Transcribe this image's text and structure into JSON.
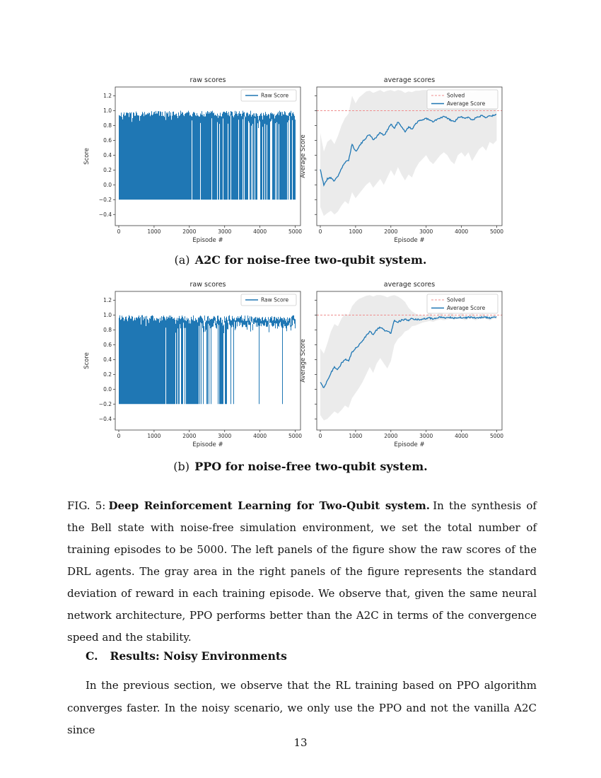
{
  "page": {
    "number": "13"
  },
  "figure": {
    "subfigures": [
      {
        "label": "(a)",
        "caption": "A2C for noise-free two-qubit system."
      },
      {
        "label": "(b)",
        "caption": "PPO for noise-free two-qubit system."
      }
    ],
    "caption": {
      "prefix": "FIG. 5:",
      "bold": "Deep Reinforcement Learning for Two-Qubit system.",
      "text": "In the synthesis of the Bell state with noise-free simulation environment, we set the total number of training episodes to be 5000. The left panels of the figure show the raw scores of the DRL agents. The gray area in the right panels of the figure represents the standard deviation of reward in each training episode. We observe that, given the same neural network architecture, PPO performs better than the A2C in terms of the convergence speed and the stability."
    }
  },
  "section": {
    "number": "C.",
    "title": "Results: Noisy Environments"
  },
  "body_text": {
    "paragraph": "In the previous section, we observe that the RL training based on PPO algorithm converges faster. In the noisy scenario, we only use the PPO and not the vanilla A2C since"
  },
  "colors": {
    "blue": "#1f77b4",
    "solved": "#ef8f8f",
    "band": "#ebebeb",
    "axis": "#3b3b3b"
  },
  "chart_data": [
    {
      "id": "a2c-raw",
      "type": "spikes",
      "title": "raw scores",
      "xlabel": "Episode #",
      "ylabel": "Score",
      "xlim": [
        -100,
        5150
      ],
      "ylim": [
        -0.55,
        1.32
      ],
      "xticks": [
        0,
        1000,
        2000,
        3000,
        4000,
        5000
      ],
      "yticks": [
        1.2,
        1.0,
        0.8,
        0.6,
        0.4,
        0.2,
        0.0,
        -0.2,
        -0.4
      ],
      "ytick_labels": true,
      "legend": [
        {
          "label": "Raw Score",
          "style": "solid"
        }
      ],
      "spike_low": -0.2,
      "spike_high_range": [
        0.92,
        1.0
      ],
      "density_profile": [
        [
          0,
          1850,
          1.0
        ],
        [
          1850,
          2600,
          0.95
        ],
        [
          2600,
          3300,
          0.82
        ],
        [
          3300,
          4300,
          0.68
        ],
        [
          4300,
          5000,
          0.6
        ]
      ],
      "seed": 7
    },
    {
      "id": "a2c-avg",
      "type": "line",
      "title": "average scores",
      "xlabel": "Episode #",
      "ylabel": "Average Score",
      "xlim": [
        -100,
        5150
      ],
      "ylim": [
        -0.55,
        1.32
      ],
      "xticks": [
        0,
        1000,
        2000,
        3000,
        4000,
        5000
      ],
      "yticks": [
        1.2,
        1.0,
        0.8,
        0.6,
        0.4,
        0.2,
        0.0,
        -0.2,
        -0.4
      ],
      "ytick_labels": false,
      "legend": [
        {
          "label": "Solved",
          "style": "dashed"
        },
        {
          "label": "Average Score",
          "style": "solid"
        }
      ],
      "solved_y": 1.0,
      "x": [
        0,
        100,
        200,
        300,
        400,
        500,
        600,
        700,
        800,
        900,
        1000,
        1100,
        1200,
        1300,
        1400,
        1500,
        1600,
        1700,
        1800,
        1900,
        2000,
        2100,
        2200,
        2300,
        2400,
        2500,
        2600,
        2700,
        2800,
        2900,
        3000,
        3100,
        3200,
        3300,
        3400,
        3500,
        3600,
        3700,
        3800,
        3900,
        4000,
        4100,
        4200,
        4300,
        4400,
        4500,
        4600,
        4700,
        4800,
        4900,
        5000
      ],
      "avg": [
        0.2,
        0.0,
        0.08,
        0.1,
        0.05,
        0.12,
        0.22,
        0.3,
        0.33,
        0.55,
        0.45,
        0.52,
        0.58,
        0.64,
        0.68,
        0.61,
        0.65,
        0.71,
        0.66,
        0.74,
        0.82,
        0.76,
        0.85,
        0.78,
        0.72,
        0.78,
        0.75,
        0.83,
        0.86,
        0.88,
        0.9,
        0.87,
        0.85,
        0.88,
        0.9,
        0.92,
        0.9,
        0.87,
        0.85,
        0.9,
        0.92,
        0.89,
        0.92,
        0.87,
        0.9,
        0.92,
        0.94,
        0.91,
        0.94,
        0.93,
        0.95
      ],
      "band_lower": [
        -0.3,
        -0.42,
        -0.38,
        -0.35,
        -0.4,
        -0.36,
        -0.28,
        -0.22,
        -0.26,
        -0.1,
        -0.18,
        -0.12,
        -0.06,
        0.0,
        0.04,
        -0.04,
        0.02,
        0.08,
        0.0,
        0.1,
        0.2,
        0.12,
        0.24,
        0.14,
        0.06,
        0.14,
        0.1,
        0.22,
        0.3,
        0.35,
        0.4,
        0.32,
        0.28,
        0.34,
        0.4,
        0.44,
        0.4,
        0.32,
        0.28,
        0.4,
        0.44,
        0.38,
        0.44,
        0.32,
        0.4,
        0.48,
        0.52,
        0.46,
        0.58,
        0.55,
        0.6
      ],
      "band_upper": [
        0.7,
        0.45,
        0.58,
        0.62,
        0.55,
        0.66,
        0.8,
        0.9,
        0.96,
        1.2,
        1.1,
        1.18,
        1.22,
        1.26,
        1.27,
        1.24,
        1.26,
        1.28,
        1.25,
        1.27,
        1.28,
        1.26,
        1.28,
        1.27,
        1.24,
        1.26,
        1.25,
        1.27,
        1.27,
        1.28,
        1.28,
        1.27,
        1.26,
        1.27,
        1.28,
        1.28,
        1.27,
        1.25,
        1.24,
        1.27,
        1.28,
        1.26,
        1.27,
        1.24,
        1.26,
        1.28,
        1.28,
        1.27,
        1.28,
        1.27,
        1.28
      ],
      "seed": 21
    },
    {
      "id": "ppo-raw",
      "type": "spikes",
      "title": "raw scores",
      "xlabel": "Episode #",
      "ylabel": "Score",
      "xlim": [
        -100,
        5150
      ],
      "ylim": [
        -0.55,
        1.32
      ],
      "xticks": [
        0,
        1000,
        2000,
        3000,
        4000,
        5000
      ],
      "yticks": [
        1.2,
        1.0,
        0.8,
        0.6,
        0.4,
        0.2,
        0.0,
        -0.2,
        -0.4
      ],
      "ytick_labels": true,
      "legend": [
        {
          "label": "Raw Score",
          "style": "solid"
        }
      ],
      "spike_low": -0.2,
      "spike_high_range": [
        0.92,
        1.0
      ],
      "density_profile": [
        [
          0,
          1050,
          1.0
        ],
        [
          1050,
          1700,
          0.92
        ],
        [
          1700,
          2100,
          0.75
        ],
        [
          2100,
          2450,
          0.55
        ],
        [
          2450,
          3300,
          0.3
        ],
        [
          3300,
          5000,
          0.05
        ]
      ],
      "seed": 99
    },
    {
      "id": "ppo-avg",
      "type": "line",
      "title": "average scores",
      "xlabel": "Episode #",
      "ylabel": "Average Score",
      "xlim": [
        -100,
        5150
      ],
      "ylim": [
        -0.55,
        1.32
      ],
      "xticks": [
        0,
        1000,
        2000,
        3000,
        4000,
        5000
      ],
      "yticks": [
        1.2,
        1.0,
        0.8,
        0.6,
        0.4,
        0.2,
        0.0,
        -0.2,
        -0.4
      ],
      "ytick_labels": false,
      "legend": [
        {
          "label": "Solved",
          "style": "dashed"
        },
        {
          "label": "Average Score",
          "style": "solid"
        }
      ],
      "solved_y": 1.0,
      "x": [
        0,
        100,
        200,
        300,
        400,
        500,
        600,
        700,
        800,
        900,
        1000,
        1100,
        1200,
        1300,
        1400,
        1500,
        1600,
        1700,
        1800,
        1900,
        2000,
        2100,
        2200,
        2300,
        2400,
        2500,
        2600,
        2700,
        2800,
        2900,
        3000,
        3100,
        3200,
        3300,
        3400,
        3500,
        3600,
        3700,
        3800,
        3900,
        4000,
        4100,
        4200,
        4300,
        4400,
        4500,
        4600,
        4700,
        4800,
        4900,
        5000
      ],
      "avg": [
        0.1,
        0.02,
        0.12,
        0.22,
        0.3,
        0.27,
        0.35,
        0.4,
        0.38,
        0.5,
        0.55,
        0.6,
        0.66,
        0.72,
        0.78,
        0.74,
        0.8,
        0.84,
        0.8,
        0.78,
        0.76,
        0.93,
        0.91,
        0.93,
        0.94,
        0.93,
        0.95,
        0.94,
        0.94,
        0.95,
        0.95,
        0.96,
        0.95,
        0.96,
        0.97,
        0.96,
        0.97,
        0.97,
        0.96,
        0.97,
        0.97,
        0.96,
        0.97,
        0.97,
        0.96,
        0.97,
        0.97,
        0.97,
        0.96,
        0.97,
        0.97
      ],
      "band_lower": [
        -0.35,
        -0.42,
        -0.4,
        -0.35,
        -0.3,
        -0.33,
        -0.28,
        -0.22,
        -0.25,
        -0.12,
        -0.05,
        0.02,
        0.1,
        0.2,
        0.3,
        0.22,
        0.35,
        0.42,
        0.35,
        0.28,
        0.38,
        0.6,
        0.68,
        0.72,
        0.78,
        0.8,
        0.85,
        0.86,
        0.88,
        0.9,
        0.91,
        0.92,
        0.91,
        0.93,
        0.94,
        0.93,
        0.94,
        0.95,
        0.94,
        0.95,
        0.95,
        0.93,
        0.95,
        0.95,
        0.93,
        0.95,
        0.95,
        0.95,
        0.93,
        0.95,
        0.95
      ],
      "band_upper": [
        0.55,
        0.48,
        0.62,
        0.78,
        0.88,
        0.85,
        0.95,
        1.02,
        1.0,
        1.12,
        1.18,
        1.22,
        1.24,
        1.26,
        1.27,
        1.25,
        1.27,
        1.27,
        1.26,
        1.24,
        1.26,
        1.27,
        1.25,
        1.22,
        1.18,
        1.1,
        1.05,
        1.02,
        1.0,
        1.0,
        0.99,
        1.05,
        0.99,
        0.99,
        1.08,
        0.99,
        0.99,
        1.06,
        0.99,
        0.98,
        1.04,
        0.99,
        0.98,
        1.03,
        0.99,
        0.98,
        1.02,
        0.99,
        0.98,
        1.0,
        0.99
      ],
      "seed": 55
    }
  ]
}
